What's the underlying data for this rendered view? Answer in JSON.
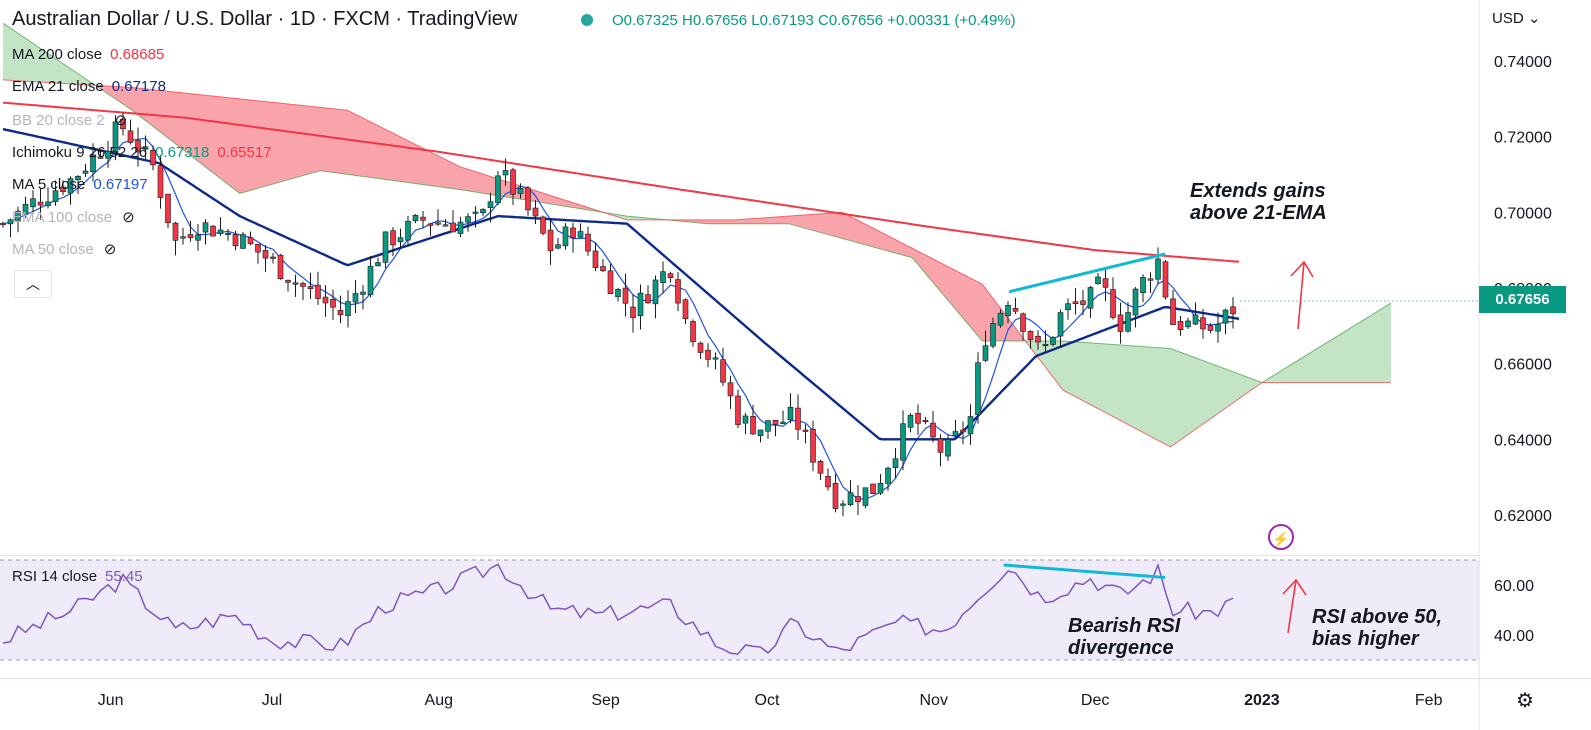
{
  "header": {
    "title": "Australian Dollar / U.S. Dollar · 1D · FXCM · TradingView",
    "ohlc": "O0.67325 H0.67656 L0.67193 C0.67656 +0.00331 (+0.49%)"
  },
  "legend": [
    {
      "label": "MA 200 close",
      "value": "0.68685",
      "color": "#f23645"
    },
    {
      "label": "EMA 21 close",
      "value": "0.67178",
      "color": "#0d2a8a"
    },
    {
      "label": "BB 20 close 2",
      "value": "",
      "color": "#b2b5be"
    },
    {
      "label": "Ichimoku 9 26 52 26",
      "value": "0.67318",
      "value2": "0.65517",
      "color": "#089981",
      "color2": "#f23645"
    },
    {
      "label": "MA 5 close",
      "value": "0.67197",
      "color": "#1e53e5"
    },
    {
      "label": "EMA 100 close",
      "value": "",
      "color": "#b2b5be"
    },
    {
      "label": "MA 50 close",
      "value": "",
      "color": "#b2b5be"
    }
  ],
  "collapse_icon": "chevron-up-icon",
  "price_axis": {
    "currency": "USD",
    "last_price": "0.67656",
    "last_price_color": "#089981"
  },
  "rsi": {
    "label": "RSI 14 close",
    "value": "55.45",
    "color": "#7e57c2"
  },
  "annotations": {
    "price_note_line1": "Extends gains",
    "price_note_line2": "above 21-EMA",
    "rsi_note1_line1": "Bearish RSI",
    "rsi_note1_line2": "divergence",
    "rsi_note2_line1": "RSI above 50,",
    "rsi_note2_line2": "bias higher"
  },
  "chart_data": [
    {
      "type": "candlestick",
      "title": "Australian Dollar / U.S. Dollar · 1D · FXCM",
      "x_labels": [
        "Jun",
        "Jul",
        "Aug",
        "Sep",
        "Oct",
        "Nov",
        "Dec",
        "2023",
        "Feb"
      ],
      "y_ticks": [
        "0.74000",
        "0.72000",
        "0.70000",
        "0.68000",
        "0.66000",
        "0.64000",
        "0.62000"
      ],
      "ylim": [
        0.612,
        0.746
      ],
      "grid": false,
      "close_path": [
        [
          "2022-05-12",
          0.697
        ],
        [
          "2022-05-18",
          0.703
        ],
        [
          "2022-05-25",
          0.709
        ],
        [
          "2022-05-31",
          0.718
        ],
        [
          "2022-06-03",
          0.723
        ],
        [
          "2022-06-09",
          0.712
        ],
        [
          "2022-06-13",
          0.692
        ],
        [
          "2022-06-17",
          0.697
        ],
        [
          "2022-06-24",
          0.694
        ],
        [
          "2022-06-30",
          0.688
        ],
        [
          "2022-07-06",
          0.681
        ],
        [
          "2022-07-14",
          0.673
        ],
        [
          "2022-07-19",
          0.684
        ],
        [
          "2022-07-22",
          0.692
        ],
        [
          "2022-07-29",
          0.698
        ],
        [
          "2022-08-04",
          0.697
        ],
        [
          "2022-08-09",
          0.698
        ],
        [
          "2022-08-12",
          0.711
        ],
        [
          "2022-08-16",
          0.704
        ],
        [
          "2022-08-22",
          0.69
        ],
        [
          "2022-08-26",
          0.696
        ],
        [
          "2022-08-31",
          0.685
        ],
        [
          "2022-09-06",
          0.674
        ],
        [
          "2022-09-13",
          0.686
        ],
        [
          "2022-09-16",
          0.671
        ],
        [
          "2022-09-22",
          0.658
        ],
        [
          "2022-09-26",
          0.645
        ],
        [
          "2022-09-30",
          0.643
        ],
        [
          "2022-10-06",
          0.646
        ],
        [
          "2022-10-12",
          0.629
        ],
        [
          "2022-10-14",
          0.624
        ],
        [
          "2022-10-21",
          0.627
        ],
        [
          "2022-10-25",
          0.638
        ],
        [
          "2022-10-28",
          0.646
        ],
        [
          "2022-11-03",
          0.636
        ],
        [
          "2022-11-08",
          0.646
        ],
        [
          "2022-11-10",
          0.666
        ],
        [
          "2022-11-15",
          0.678
        ],
        [
          "2022-11-21",
          0.662
        ],
        [
          "2022-11-25",
          0.674
        ],
        [
          "2022-11-30",
          0.677
        ],
        [
          "2022-12-02",
          0.681
        ],
        [
          "2022-12-06",
          0.67
        ],
        [
          "2022-12-09",
          0.68
        ],
        [
          "2022-12-13",
          0.688
        ],
        [
          "2022-12-15",
          0.671
        ],
        [
          "2022-12-20",
          0.67
        ],
        [
          "2022-12-23",
          0.669
        ],
        [
          "2022-12-28",
          0.6766
        ]
      ],
      "series": [
        {
          "name": "MA 200 close",
          "color": "#f23645",
          "points": [
            [
              "2022-05-12",
              0.729
            ],
            [
              "2022-06-15",
              0.725
            ],
            [
              "2022-08-01",
              0.716
            ],
            [
              "2022-09-15",
              0.706
            ],
            [
              "2022-11-01",
              0.696
            ],
            [
              "2022-12-01",
              0.69
            ],
            [
              "2022-12-28",
              0.6869
            ]
          ]
        },
        {
          "name": "EMA 21 close",
          "color": "#0d2a8a",
          "points": [
            [
              "2022-05-12",
              0.722
            ],
            [
              "2022-06-10",
              0.713
            ],
            [
              "2022-06-25",
              0.699
            ],
            [
              "2022-07-15",
              0.686
            ],
            [
              "2022-08-12",
              0.699
            ],
            [
              "2022-09-05",
              0.697
            ],
            [
              "2022-10-01",
              0.665
            ],
            [
              "2022-10-22",
              0.64
            ],
            [
              "2022-11-05",
              0.64
            ],
            [
              "2022-11-20",
              0.662
            ],
            [
              "2022-12-14",
              0.675
            ],
            [
              "2022-12-28",
              0.6718
            ]
          ]
        }
      ],
      "ichimoku_cloud": {
        "span_a": [
          [
            "2022-05-12",
            0.75
          ],
          [
            "2022-06-05",
            0.727
          ],
          [
            "2022-06-25",
            0.705
          ],
          [
            "2022-07-10",
            0.711
          ],
          [
            "2022-08-05",
            0.706
          ],
          [
            "2022-09-05",
            0.699
          ],
          [
            "2022-09-20",
            0.697
          ],
          [
            "2022-10-05",
            0.697
          ],
          [
            "2022-10-28",
            0.688
          ],
          [
            "2022-11-10",
            0.666
          ],
          [
            "2022-11-25",
            0.666
          ],
          [
            "2022-12-15",
            0.664
          ],
          [
            "2023-01-01",
            0.655
          ],
          [
            "2023-01-25",
            0.676
          ]
        ],
        "span_b": [
          [
            "2022-05-12",
            0.735
          ],
          [
            "2022-06-05",
            0.733
          ],
          [
            "2022-07-15",
            0.727
          ],
          [
            "2022-08-05",
            0.712
          ],
          [
            "2022-09-05",
            0.698
          ],
          [
            "2022-09-25",
            0.698
          ],
          [
            "2022-10-15",
            0.7
          ],
          [
            "2022-11-10",
            0.681
          ],
          [
            "2022-11-25",
            0.653
          ],
          [
            "2022-12-15",
            0.638
          ],
          [
            "2023-01-01",
            0.655
          ],
          [
            "2023-01-25",
            0.655
          ]
        ]
      },
      "trendline": [
        [
          "2022-11-15",
          0.679
        ],
        [
          "2022-12-14",
          0.689
        ]
      ],
      "last_price": 0.67656
    },
    {
      "type": "line",
      "name": "RSI 14 close",
      "y_ticks": [
        "60.00",
        "40.00"
      ],
      "ylim": [
        25,
        72
      ],
      "band": [
        30,
        70
      ],
      "points": [
        [
          "2022-05-12",
          38
        ],
        [
          "2022-05-25",
          50
        ],
        [
          "2022-06-03",
          62
        ],
        [
          "2022-06-13",
          42
        ],
        [
          "2022-06-24",
          48
        ],
        [
          "2022-07-01",
          38
        ],
        [
          "2022-07-14",
          36
        ],
        [
          "2022-07-22",
          52
        ],
        [
          "2022-08-01",
          58
        ],
        [
          "2022-08-12",
          68
        ],
        [
          "2022-08-22",
          50
        ],
        [
          "2022-08-31",
          48
        ],
        [
          "2022-09-13",
          52
        ],
        [
          "2022-09-22",
          36
        ],
        [
          "2022-09-30",
          32
        ],
        [
          "2022-10-06",
          45
        ],
        [
          "2022-10-14",
          33
        ],
        [
          "2022-10-25",
          45
        ],
        [
          "2022-11-03",
          42
        ],
        [
          "2022-11-10",
          58
        ],
        [
          "2022-11-15",
          68
        ],
        [
          "2022-11-21",
          55
        ],
        [
          "2022-11-30",
          63
        ],
        [
          "2022-12-06",
          56
        ],
        [
          "2022-12-13",
          66
        ],
        [
          "2022-12-15",
          50
        ],
        [
          "2022-12-23",
          49
        ],
        [
          "2022-12-28",
          55.45
        ]
      ],
      "divergence_line": [
        [
          "2022-11-14",
          68
        ],
        [
          "2022-12-14",
          63
        ]
      ]
    }
  ]
}
